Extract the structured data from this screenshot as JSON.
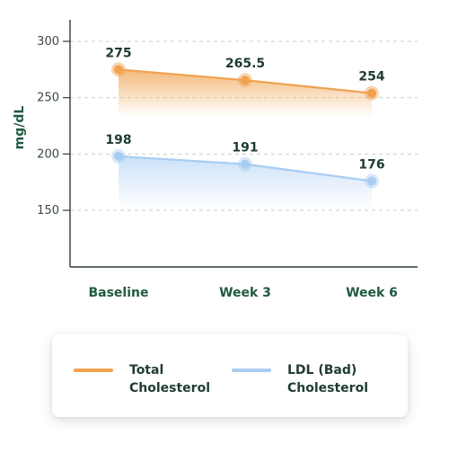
{
  "chart_data": {
    "type": "area",
    "categories": [
      "Baseline",
      "Week 3",
      "Week 6"
    ],
    "ylabel": "mg/dL",
    "yticks": [
      150,
      200,
      250,
      300
    ],
    "ylim": [
      100,
      320
    ],
    "grid": true,
    "series": [
      {
        "name": "Total Cholesterol",
        "values": [
          275,
          265.5,
          254
        ],
        "labels": [
          "275",
          "265.5",
          "254"
        ],
        "color": "#f0a24f"
      },
      {
        "name": "LDL (Bad) Cholesterol",
        "values": [
          198,
          191,
          176
        ],
        "labels": [
          "198",
          "191",
          "176"
        ],
        "color": "#a8cdf3"
      }
    ],
    "legend_position": "bottom"
  },
  "legend": {
    "items": [
      {
        "label": "Total Cholesterol",
        "color": "#f0a24f"
      },
      {
        "label": "LDL (Bad) Cholesterol",
        "color": "#a8cdf3"
      }
    ]
  }
}
